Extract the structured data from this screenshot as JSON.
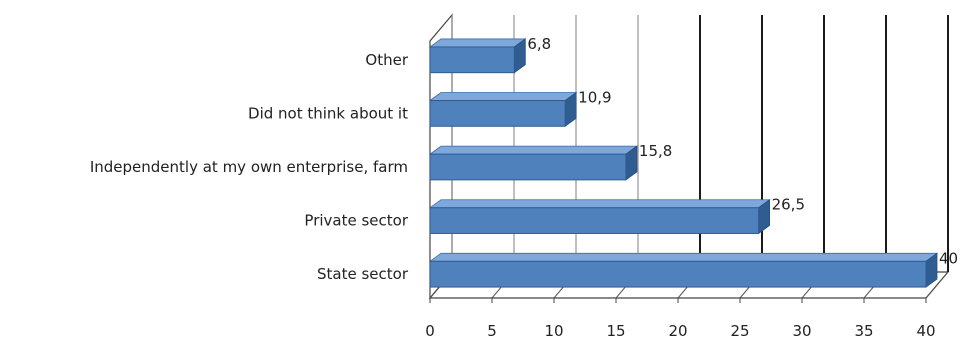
{
  "chart_data": {
    "type": "bar",
    "orientation": "horizontal",
    "style": "3d",
    "categories": [
      "State sector",
      "Private sector",
      "Independently at my own enterprise, farm",
      "Did not think about it",
      "Other"
    ],
    "values": [
      40,
      26.5,
      15.8,
      10.9,
      6.8
    ],
    "value_labels": [
      "40",
      "26,5",
      "15,8",
      "10,9",
      "6,8"
    ],
    "xlim": [
      0,
      40
    ],
    "xticks": [
      0,
      5,
      10,
      15,
      20,
      25,
      30,
      35,
      40
    ],
    "xtick_labels": [
      "0",
      "5",
      "10",
      "15",
      "20",
      "25",
      "30",
      "35",
      "40"
    ],
    "grid": true,
    "legend": "none",
    "colors": {
      "bar_front": "#4f81bd",
      "bar_top": "#7ea7dc",
      "bar_side": "#2f5d91"
    }
  }
}
